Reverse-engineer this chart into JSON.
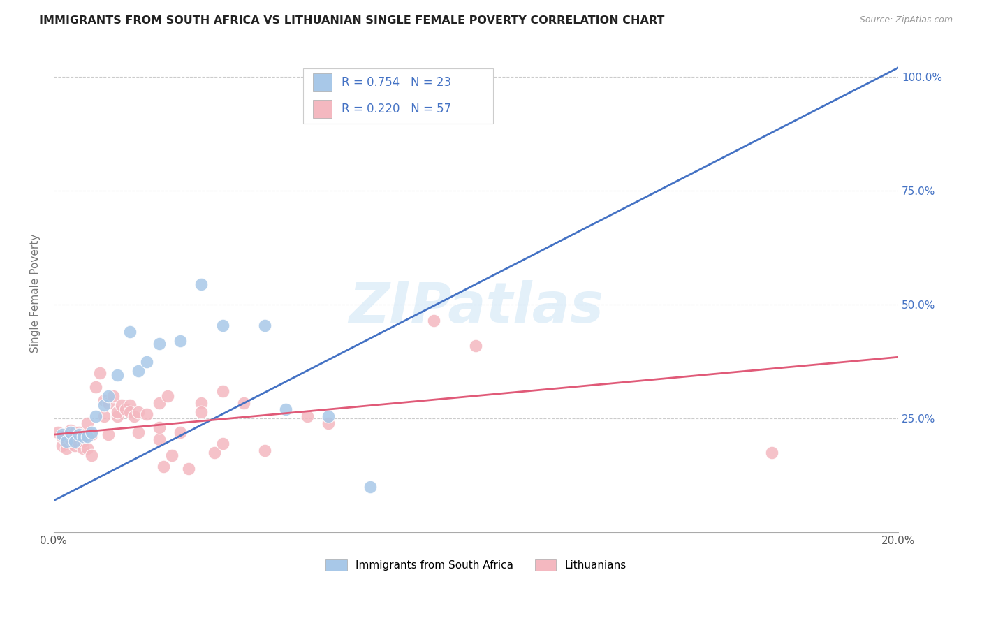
{
  "title": "IMMIGRANTS FROM SOUTH AFRICA VS LITHUANIAN SINGLE FEMALE POVERTY CORRELATION CHART",
  "source": "Source: ZipAtlas.com",
  "ylabel": "Single Female Poverty",
  "legend_bottom": [
    "Immigrants from South Africa",
    "Lithuanians"
  ],
  "r_blue": 0.754,
  "n_blue": 23,
  "r_pink": 0.22,
  "n_pink": 57,
  "blue_color": "#a8c8e8",
  "pink_color": "#f4b8c0",
  "line_blue": "#4472c4",
  "line_pink": "#e05a78",
  "text_color": "#4472c4",
  "blue_scatter": [
    [
      0.002,
      0.215
    ],
    [
      0.003,
      0.2
    ],
    [
      0.004,
      0.22
    ],
    [
      0.005,
      0.2
    ],
    [
      0.006,
      0.215
    ],
    [
      0.007,
      0.21
    ],
    [
      0.008,
      0.21
    ],
    [
      0.009,
      0.22
    ],
    [
      0.01,
      0.255
    ],
    [
      0.012,
      0.28
    ],
    [
      0.013,
      0.3
    ],
    [
      0.015,
      0.345
    ],
    [
      0.018,
      0.44
    ],
    [
      0.02,
      0.355
    ],
    [
      0.022,
      0.375
    ],
    [
      0.025,
      0.415
    ],
    [
      0.03,
      0.42
    ],
    [
      0.035,
      0.545
    ],
    [
      0.04,
      0.455
    ],
    [
      0.05,
      0.455
    ],
    [
      0.055,
      0.27
    ],
    [
      0.065,
      0.255
    ],
    [
      0.075,
      0.1
    ]
  ],
  "pink_scatter": [
    [
      0.001,
      0.22
    ],
    [
      0.002,
      0.19
    ],
    [
      0.002,
      0.21
    ],
    [
      0.003,
      0.2
    ],
    [
      0.003,
      0.185
    ],
    [
      0.004,
      0.205
    ],
    [
      0.004,
      0.215
    ],
    [
      0.004,
      0.225
    ],
    [
      0.005,
      0.19
    ],
    [
      0.005,
      0.21
    ],
    [
      0.005,
      0.22
    ],
    [
      0.006,
      0.195
    ],
    [
      0.006,
      0.22
    ],
    [
      0.007,
      0.185
    ],
    [
      0.007,
      0.2
    ],
    [
      0.007,
      0.215
    ],
    [
      0.008,
      0.24
    ],
    [
      0.008,
      0.185
    ],
    [
      0.009,
      0.17
    ],
    [
      0.009,
      0.215
    ],
    [
      0.01,
      0.32
    ],
    [
      0.011,
      0.35
    ],
    [
      0.012,
      0.255
    ],
    [
      0.012,
      0.29
    ],
    [
      0.013,
      0.215
    ],
    [
      0.013,
      0.285
    ],
    [
      0.014,
      0.3
    ],
    [
      0.015,
      0.255
    ],
    [
      0.015,
      0.265
    ],
    [
      0.016,
      0.28
    ],
    [
      0.017,
      0.27
    ],
    [
      0.018,
      0.28
    ],
    [
      0.018,
      0.265
    ],
    [
      0.019,
      0.255
    ],
    [
      0.02,
      0.265
    ],
    [
      0.02,
      0.22
    ],
    [
      0.022,
      0.26
    ],
    [
      0.025,
      0.285
    ],
    [
      0.025,
      0.205
    ],
    [
      0.025,
      0.23
    ],
    [
      0.026,
      0.145
    ],
    [
      0.027,
      0.3
    ],
    [
      0.028,
      0.17
    ],
    [
      0.03,
      0.22
    ],
    [
      0.032,
      0.14
    ],
    [
      0.035,
      0.285
    ],
    [
      0.035,
      0.265
    ],
    [
      0.038,
      0.175
    ],
    [
      0.04,
      0.31
    ],
    [
      0.04,
      0.195
    ],
    [
      0.045,
      0.285
    ],
    [
      0.05,
      0.18
    ],
    [
      0.06,
      0.255
    ],
    [
      0.065,
      0.24
    ],
    [
      0.09,
      0.465
    ],
    [
      0.1,
      0.41
    ],
    [
      0.17,
      0.175
    ]
  ],
  "blue_line_x": [
    0.0,
    0.2
  ],
  "blue_line_y": [
    0.07,
    1.02
  ],
  "pink_line_x": [
    0.0,
    0.2
  ],
  "pink_line_y": [
    0.215,
    0.385
  ],
  "xlim": [
    0.0,
    0.2
  ],
  "ylim": [
    0.0,
    1.05
  ],
  "background_color": "#ffffff",
  "grid_color": "#cccccc"
}
